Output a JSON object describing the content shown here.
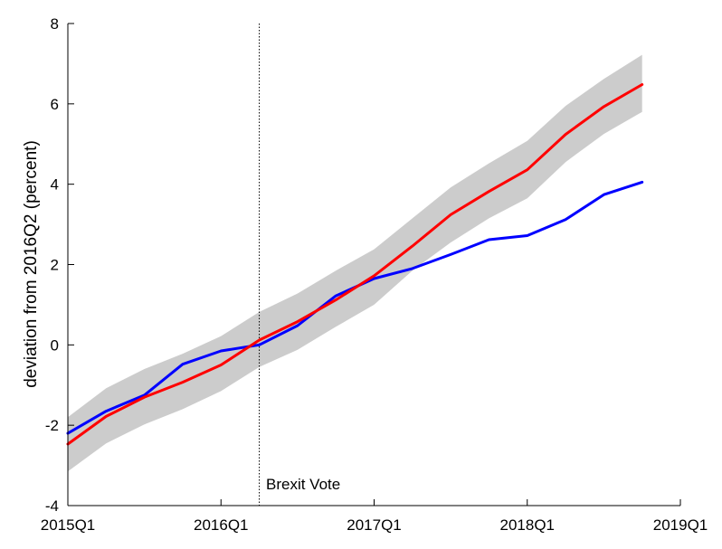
{
  "chart_data": {
    "type": "line",
    "title": "",
    "xlabel": "",
    "ylabel": "deviation from 2016Q2 (percent)",
    "quarters": [
      "2015Q1",
      "2015Q2",
      "2015Q3",
      "2015Q4",
      "2016Q1",
      "2016Q2",
      "2016Q3",
      "2016Q4",
      "2017Q1",
      "2017Q2",
      "2017Q3",
      "2017Q4",
      "2018Q1",
      "2018Q2",
      "2018Q3",
      "2018Q4"
    ],
    "xticks": [
      "2015Q1",
      "2016Q1",
      "2017Q1",
      "2018Q1",
      "2019Q1"
    ],
    "yticks": [
      -4,
      -2,
      0,
      2,
      4,
      6,
      8
    ],
    "xlim": [
      "2015Q1",
      "2019Q1"
    ],
    "ylim": [
      -4,
      8
    ],
    "grid": false,
    "series": [
      {
        "values": [
          -2.2,
          -1.65,
          -1.25,
          -0.48,
          -0.15,
          0.0,
          0.48,
          1.22,
          1.65,
          1.9,
          2.25,
          2.62,
          2.72,
          3.12,
          3.74,
          4.05
        ],
        "color": "#0000ff"
      },
      {
        "values": [
          -2.47,
          -1.78,
          -1.3,
          -0.93,
          -0.5,
          0.12,
          0.58,
          1.12,
          1.72,
          2.46,
          3.24,
          3.82,
          4.36,
          5.24,
          5.93,
          6.48
        ],
        "color": "#ff0000"
      }
    ],
    "band": {
      "upper": [
        -1.8,
        -1.08,
        -0.6,
        -0.22,
        0.22,
        0.82,
        1.28,
        1.85,
        2.38,
        3.15,
        3.92,
        4.52,
        5.08,
        5.95,
        6.62,
        7.22
      ],
      "lower": [
        -3.15,
        -2.45,
        -1.98,
        -1.6,
        -1.15,
        -0.55,
        -0.12,
        0.45,
        1.0,
        1.85,
        2.55,
        3.15,
        3.65,
        4.55,
        5.25,
        5.8
      ],
      "color": "#cccccc"
    },
    "vline": {
      "x": "2016Q2",
      "label": "Brexit Vote",
      "style": "dotted"
    }
  }
}
